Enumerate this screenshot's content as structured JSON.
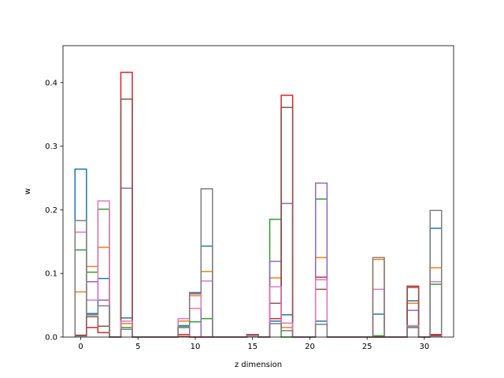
{
  "chart_data": {
    "type": "step",
    "xlabel": "z dimension",
    "ylabel": "w",
    "xlim": [
      -1.55,
      32.55
    ],
    "ylim": [
      0,
      0.458
    ],
    "xticks": [
      0,
      5,
      10,
      15,
      20,
      25,
      30
    ],
    "yticks": [
      0.0,
      0.1,
      0.2,
      0.3,
      0.4
    ],
    "ytick_labels": [
      "0.0",
      "0.1",
      "0.2",
      "0.3",
      "0.4"
    ],
    "grid": false,
    "legend": "none",
    "series": [
      {
        "color": "#1f77b4",
        "values": [
          0.264,
          0.037,
          0.092,
          0,
          0.03,
          0,
          0,
          0,
          0,
          0.018,
          0.07,
          0.143,
          0,
          0,
          0,
          0.002,
          0,
          0.025,
          0.035,
          0,
          0,
          0.025,
          0,
          0,
          0,
          0,
          0.036,
          0,
          0,
          0.057,
          0,
          0.171
        ]
      },
      {
        "color": "#ff7f0e",
        "values": [
          0.071,
          0.111,
          0.141,
          0,
          0.021,
          0,
          0,
          0,
          0,
          0.025,
          0.065,
          0.103,
          0,
          0,
          0,
          0.002,
          0,
          0.093,
          0.015,
          0,
          0,
          0.125,
          0,
          0,
          0,
          0,
          0.122,
          0,
          0,
          0.053,
          0,
          0.109
        ]
      },
      {
        "color": "#2ca02c",
        "values": [
          0.137,
          0.102,
          0.201,
          0,
          0.015,
          0,
          0,
          0,
          0,
          0.015,
          0.024,
          0.029,
          0,
          0,
          0,
          0.002,
          0,
          0.185,
          0,
          0,
          0,
          0.217,
          0,
          0,
          0,
          0,
          0.002,
          0,
          0,
          0.015,
          0,
          0.083
        ]
      },
      {
        "color": "#d62728",
        "values": [
          0.003,
          0.015,
          0.007,
          0,
          0.416,
          0,
          0,
          0,
          0,
          0.004,
          0,
          0,
          0,
          0,
          0,
          0.004,
          0,
          0.029,
          0.38,
          0,
          0,
          0.094,
          0,
          0,
          0,
          0,
          0,
          0,
          0,
          0.08,
          0,
          0.004
        ]
      },
      {
        "color": "#9467bd",
        "values": [
          0.002,
          0.087,
          0.058,
          0,
          0.234,
          0,
          0,
          0,
          0,
          0.001,
          0.068,
          0,
          0,
          0,
          0,
          0.002,
          0,
          0.119,
          0.21,
          0,
          0,
          0.242,
          0,
          0,
          0,
          0,
          0,
          0,
          0,
          0.042,
          0,
          0.002
        ]
      },
      {
        "color": "#8c564b",
        "values": [
          0.002,
          0.032,
          0.017,
          0,
          0.374,
          0,
          0,
          0,
          0,
          0.001,
          0,
          0,
          0,
          0,
          0,
          0.003,
          0,
          0.053,
          0.361,
          0,
          0,
          0.075,
          0,
          0,
          0,
          0,
          0,
          0,
          0,
          0.078,
          0,
          0.002
        ]
      },
      {
        "color": "#e377c2",
        "values": [
          0.165,
          0.058,
          0.214,
          0,
          0.025,
          0,
          0,
          0,
          0,
          0.029,
          0.045,
          0.088,
          0,
          0,
          0,
          0.002,
          0,
          0.079,
          0.022,
          0,
          0,
          0.09,
          0,
          0,
          0,
          0,
          0.075,
          0,
          0,
          0.018,
          0,
          0.087
        ]
      },
      {
        "color": "#7f7f7f",
        "values": [
          0.183,
          0.035,
          0.049,
          0,
          0.012,
          0,
          0,
          0,
          0,
          0.016,
          0.069,
          0.233,
          0,
          0,
          0,
          0.003,
          0,
          0.021,
          0.01,
          0,
          0,
          0.02,
          0,
          0,
          0,
          0,
          0.125,
          0,
          0,
          0.016,
          0,
          0.199
        ]
      }
    ]
  }
}
